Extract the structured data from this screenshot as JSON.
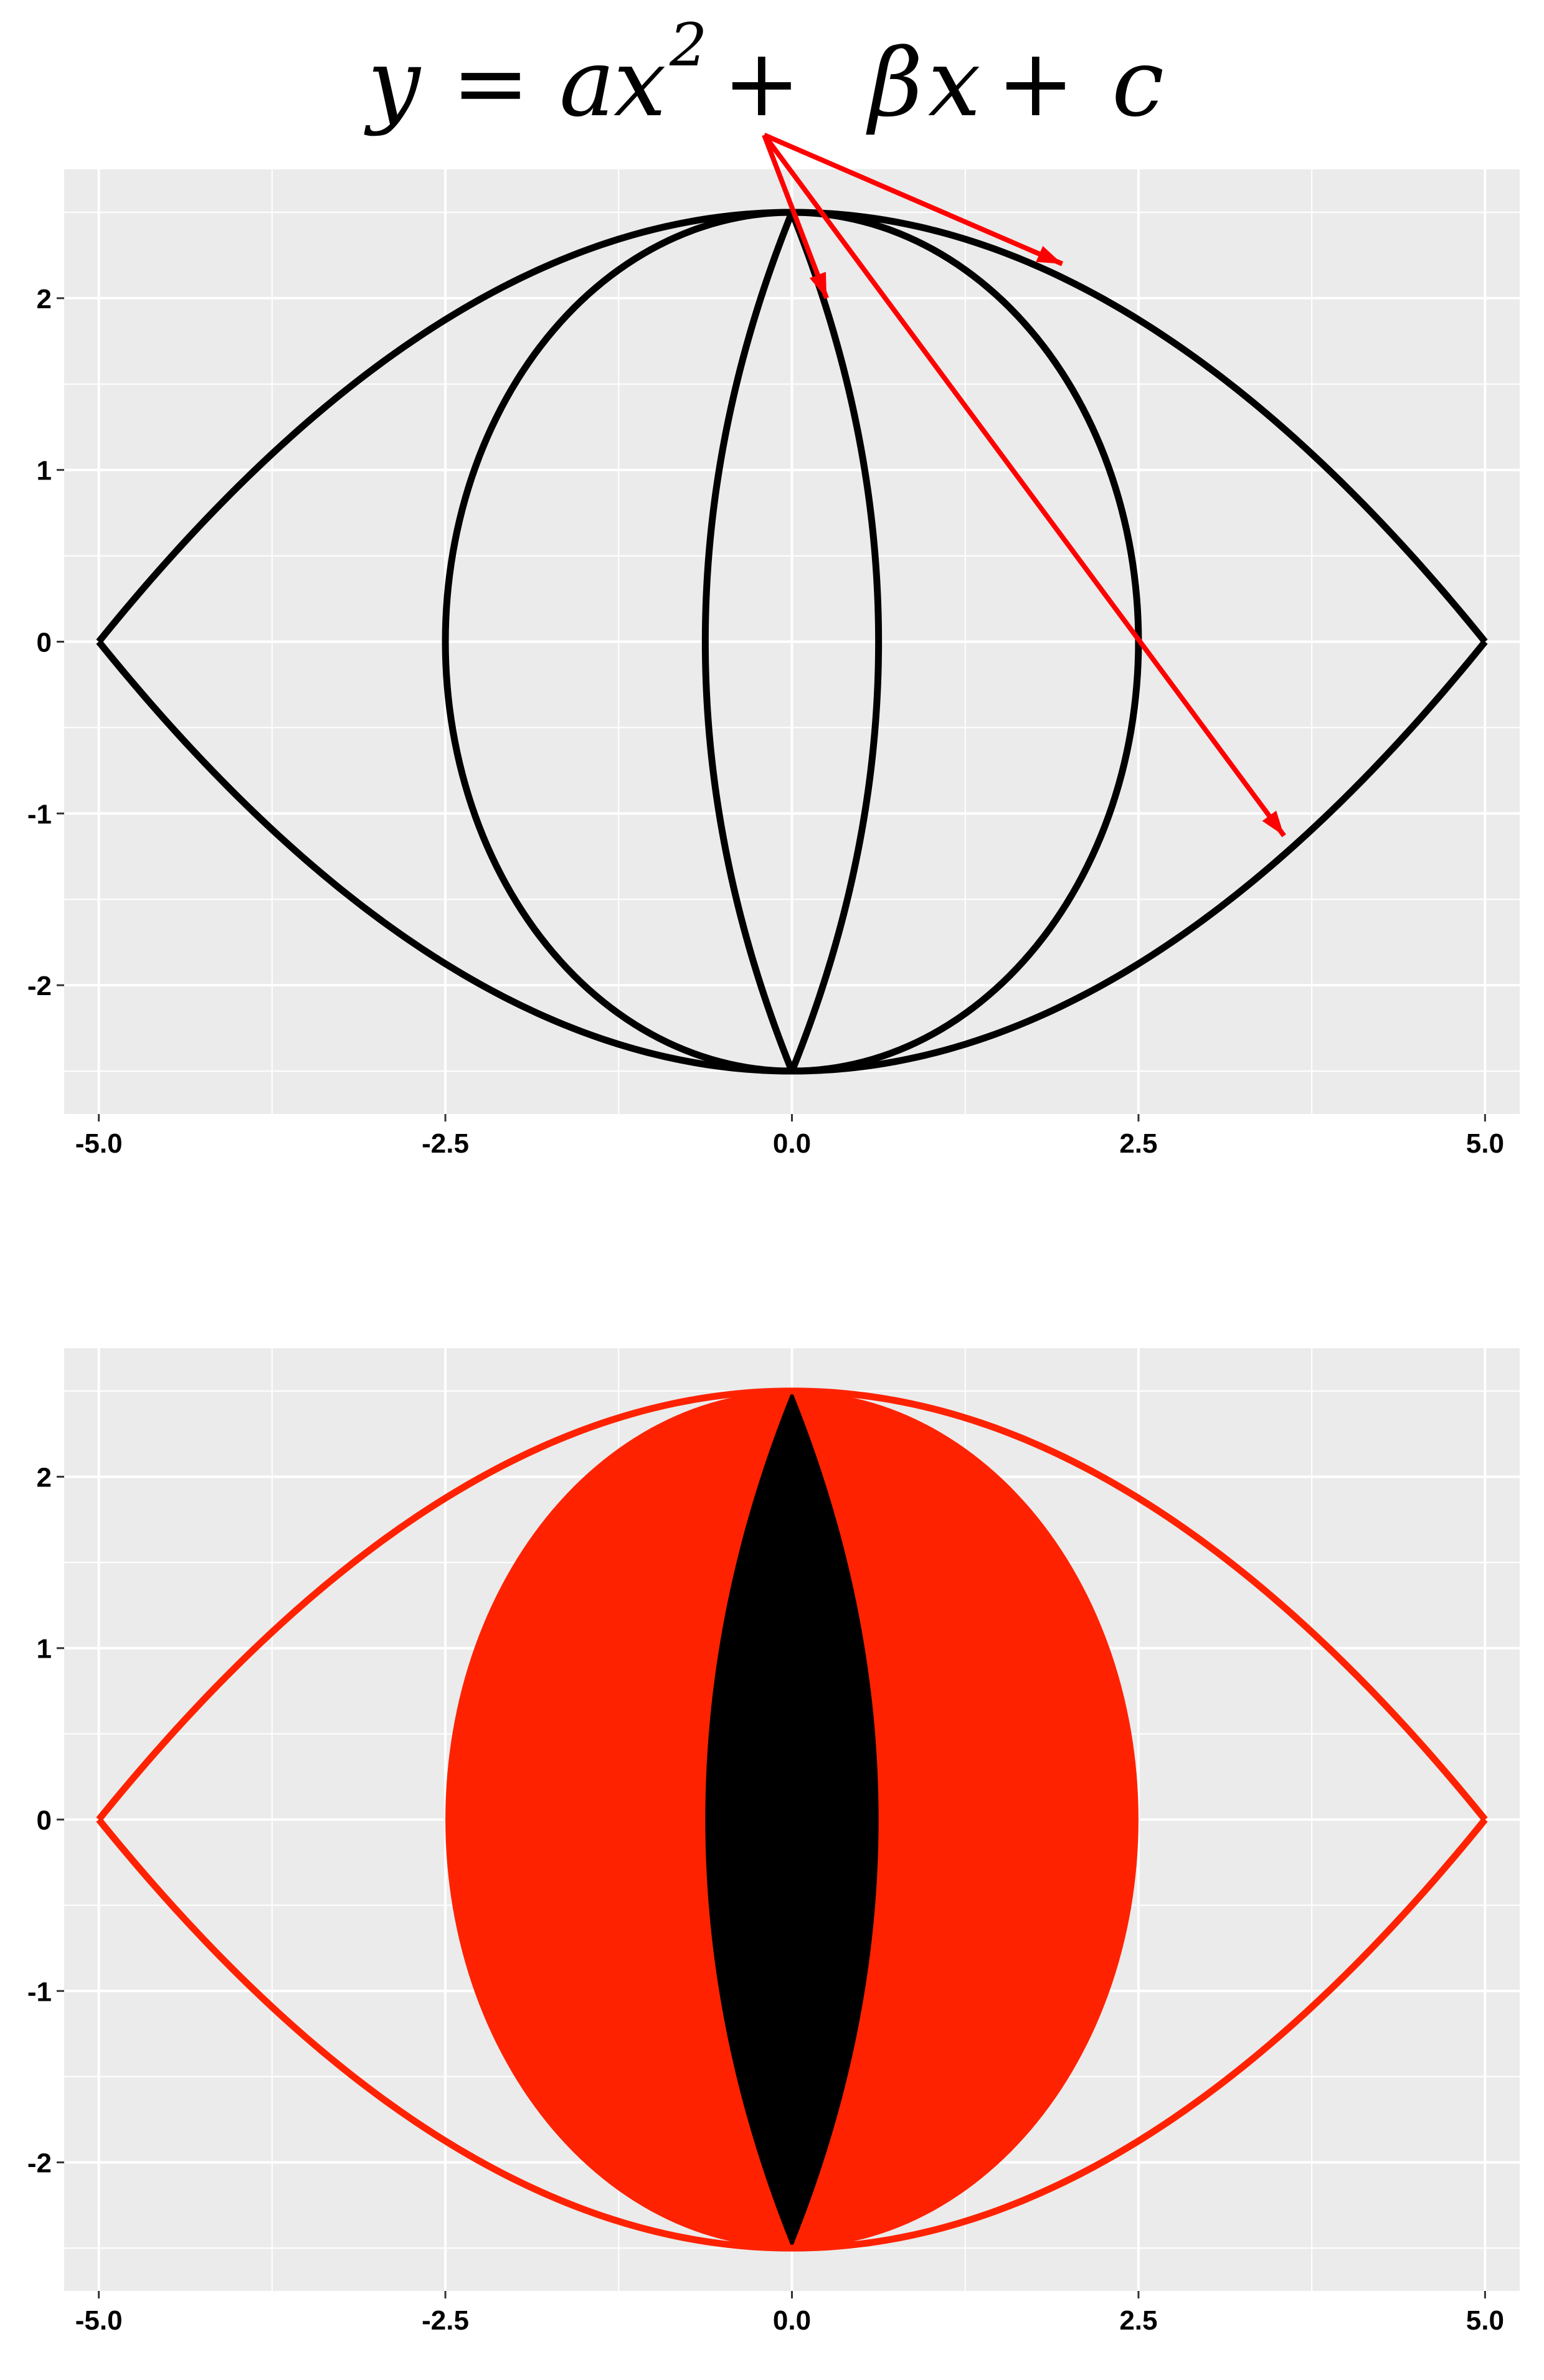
{
  "equation": {
    "y": "y",
    "eq": "=",
    "a": "a",
    "x": "x",
    "exp": "2",
    "plus1": "+",
    "beta": "β",
    "x2": "x",
    "plus2": "+",
    "c": "c"
  },
  "chart_data": [
    {
      "type": "line",
      "title": "",
      "xlabel": "",
      "ylabel": "",
      "xlim": [
        -5.25,
        5.25
      ],
      "ylim": [
        -2.75,
        2.75
      ],
      "x_ticks": [
        -5.0,
        -2.5,
        0.0,
        2.5,
        5.0
      ],
      "x_tick_labels": [
        "-5.0",
        "-2.5",
        "0.0",
        "2.5",
        "5.0"
      ],
      "y_ticks": [
        -2,
        -1,
        0,
        1,
        2
      ],
      "y_tick_labels": [
        "-2",
        "-1",
        "0",
        "1",
        "2"
      ],
      "grid": true,
      "background": "#EBEBEB",
      "line_color": "#000000",
      "arrow_color": "#FF0000",
      "curves": [
        {
          "kind": "parabola",
          "a": -0.1,
          "c": 2.5,
          "x_range": [
            -5,
            5
          ]
        },
        {
          "kind": "parabola",
          "a": 0.1,
          "c": -2.5,
          "x_range": [
            -5,
            5
          ]
        },
        {
          "kind": "ellipse",
          "cx": 0,
          "cy": 0,
          "rx": 2.5,
          "ry": 2.5
        },
        {
          "kind": "sideways-parabola",
          "a": -0.1,
          "c": 0.625,
          "y_range": [
            -2.5,
            2.5
          ]
        },
        {
          "kind": "sideways-parabola",
          "a": 0.1,
          "c": -0.625,
          "y_range": [
            -2.5,
            2.5
          ]
        }
      ],
      "annotations": [
        {
          "kind": "arrow",
          "from": [
            -0.2,
            2.95
          ],
          "to": [
            1.95,
            2.2
          ]
        },
        {
          "kind": "arrow",
          "from": [
            -0.2,
            2.95
          ],
          "to": [
            0.25,
            2.0
          ]
        },
        {
          "kind": "arrow",
          "from": [
            -0.2,
            2.95
          ],
          "to": [
            3.55,
            -1.13
          ]
        }
      ]
    },
    {
      "type": "area",
      "title": "",
      "xlabel": "",
      "ylabel": "",
      "xlim": [
        -5.25,
        5.25
      ],
      "ylim": [
        -2.75,
        2.75
      ],
      "x_ticks": [
        -5.0,
        -2.5,
        0.0,
        2.5,
        5.0
      ],
      "x_tick_labels": [
        "-5.0",
        "-2.5",
        "0.0",
        "2.5",
        "5.0"
      ],
      "y_ticks": [
        -2,
        -1,
        0,
        1,
        2
      ],
      "y_tick_labels": [
        "-2",
        "-1",
        "0",
        "1",
        "2"
      ],
      "grid": true,
      "background": "#EBEBEB",
      "outline_color": "#FF2200",
      "iris_color": "#FF2200",
      "pupil_color": "#000000",
      "outline": [
        {
          "kind": "parabola",
          "a": -0.1,
          "c": 2.5,
          "x_range": [
            -5,
            5
          ]
        },
        {
          "kind": "parabola",
          "a": 0.1,
          "c": -2.5,
          "x_range": [
            -5,
            5
          ]
        }
      ],
      "iris": {
        "kind": "ellipse",
        "cx": 0,
        "cy": 0,
        "rx": 2.5,
        "ry": 2.5
      },
      "pupil": {
        "kind": "lens",
        "half_width": 0.625,
        "y_range": [
          -2.5,
          2.5
        ]
      }
    }
  ]
}
